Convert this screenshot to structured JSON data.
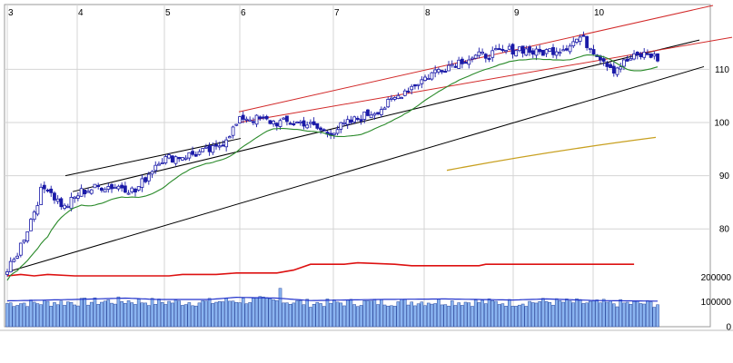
{
  "chart_data": {
    "type": "candlestick",
    "title": "",
    "x_ticks": [
      "3",
      "4",
      "5",
      "6",
      "7",
      "8",
      "9",
      "10"
    ],
    "price_ticks": [
      80,
      90,
      100,
      110
    ],
    "price_ylim": [
      71,
      122
    ],
    "volume_ticks": [
      "0",
      "100000",
      "200000"
    ],
    "volume_ylim": [
      0,
      220000
    ],
    "grid": true,
    "colors": {
      "candle": "#1a1aa8",
      "moving_average": "#2a8a2a",
      "channel": "#000000",
      "channel_upper": "#d22a2a",
      "long_average": "#c8a020",
      "volume_bar": "#8ab4f0",
      "volume_edge": "#2a4aa0",
      "volume_avg": "#2233cc",
      "red_line": "#dd1111"
    },
    "price_keypoints": [
      [
        0,
        72
      ],
      [
        2,
        74
      ],
      [
        6,
        80
      ],
      [
        10,
        87
      ],
      [
        12,
        88
      ],
      [
        14,
        86
      ],
      [
        17,
        84
      ],
      [
        22,
        87
      ],
      [
        28,
        88
      ],
      [
        34,
        88
      ],
      [
        38,
        87
      ],
      [
        45,
        93
      ],
      [
        55,
        94
      ],
      [
        62,
        95
      ],
      [
        70,
        101
      ],
      [
        80,
        100
      ],
      [
        88,
        100
      ],
      [
        95,
        98
      ],
      [
        105,
        101
      ],
      [
        112,
        103
      ],
      [
        118,
        106
      ],
      [
        128,
        110
      ],
      [
        136,
        112
      ],
      [
        145,
        113
      ],
      [
        152,
        114
      ],
      [
        157,
        113
      ],
      [
        165,
        114
      ],
      [
        170,
        116
      ],
      [
        175,
        113
      ],
      [
        180,
        110
      ],
      [
        185,
        112
      ],
      [
        190,
        113
      ],
      [
        193,
        112
      ]
    ],
    "volume_keypoints": [
      [
        0,
        95000
      ],
      [
        20,
        100000
      ],
      [
        35,
        105000
      ],
      [
        45,
        100000
      ],
      [
        60,
        100000
      ],
      [
        68,
        108000
      ],
      [
        80,
        105000
      ],
      [
        90,
        96000
      ],
      [
        110,
        100000
      ],
      [
        130,
        102000
      ],
      [
        150,
        98000
      ],
      [
        160,
        102000
      ],
      [
        175,
        96000
      ],
      [
        193,
        94000
      ]
    ],
    "indicator_line": [
      [
        0,
        5
      ],
      [
        4,
        6
      ],
      [
        8,
        5
      ],
      [
        12,
        6
      ],
      [
        20,
        5
      ],
      [
        30,
        5
      ],
      [
        40,
        5
      ],
      [
        48,
        5
      ],
      [
        52,
        6
      ],
      [
        62,
        6
      ],
      [
        68,
        7
      ],
      [
        80,
        7
      ],
      [
        85,
        9
      ],
      [
        90,
        13
      ],
      [
        100,
        13
      ],
      [
        104,
        14
      ],
      [
        115,
        13
      ],
      [
        120,
        12
      ],
      [
        140,
        12
      ],
      [
        142,
        13
      ],
      [
        150,
        13
      ],
      [
        165,
        13
      ],
      [
        180,
        13
      ],
      [
        186,
        13
      ]
    ],
    "moving_average_window": 13
  }
}
